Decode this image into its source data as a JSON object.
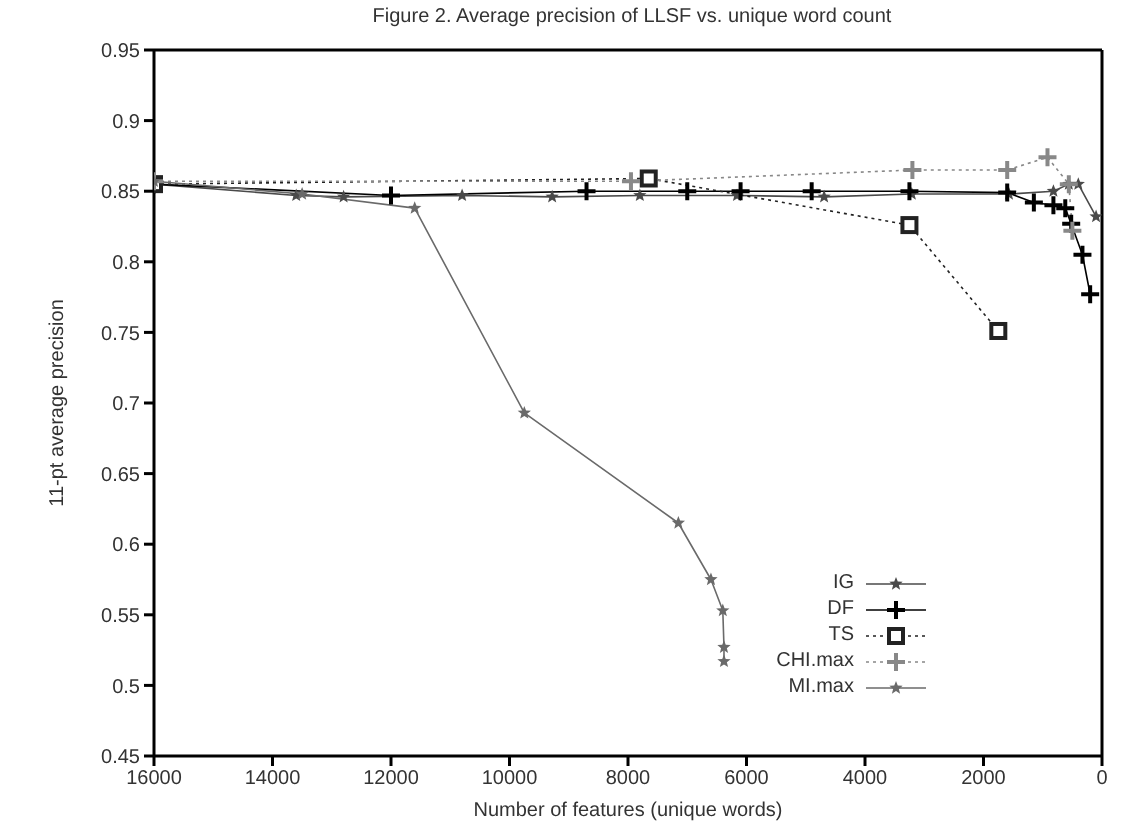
{
  "chart_data": {
    "type": "line",
    "title": "Figure 2. Average precision of LLSF vs. unique word count",
    "xlabel": "Number of features (unique words)",
    "ylabel": "11-pt average precision",
    "xlim": [
      16000,
      0
    ],
    "xticks": [
      16000,
      14000,
      12000,
      10000,
      8000,
      6000,
      4000,
      2000,
      0
    ],
    "ylim": [
      0.45,
      0.95
    ],
    "yticks": [
      0.45,
      0.5,
      0.55,
      0.6,
      0.65,
      0.7,
      0.75,
      0.8,
      0.85,
      0.9,
      0.95
    ],
    "grid": false,
    "legend": "bottom right",
    "series": [
      {
        "name": "IG",
        "color": "#4a4a4a",
        "marker": "star",
        "line_style": "solid",
        "x": [
          16000,
          13600,
          12800,
          10800,
          9280,
          7800,
          6160,
          4690,
          3210,
          1570,
          820,
          560,
          400,
          100
        ],
        "values": [
          0.855,
          0.847,
          0.846,
          0.847,
          0.846,
          0.847,
          0.847,
          0.846,
          0.848,
          0.848,
          0.85,
          0.855,
          0.855,
          0.832
        ]
      },
      {
        "name": "DF",
        "color": "#000000",
        "marker": "cross",
        "line_style": "solid",
        "x": [
          16000,
          12000,
          8700,
          7000,
          6100,
          4900,
          3250,
          1600,
          1150,
          820,
          620,
          520,
          330,
          200
        ],
        "values": [
          0.855,
          0.847,
          0.85,
          0.85,
          0.85,
          0.85,
          0.85,
          0.849,
          0.842,
          0.84,
          0.838,
          0.827,
          0.805,
          0.777
        ]
      },
      {
        "name": "TS",
        "color": "#222222",
        "marker": "square",
        "line_style": "dotted",
        "x": [
          16000,
          7650,
          3250,
          1750
        ],
        "values": [
          0.855,
          0.859,
          0.826,
          0.751
        ]
      },
      {
        "name": "CHI.max",
        "color": "#888888",
        "marker": "cross",
        "line_style": "dotted",
        "x": [
          16000,
          7950,
          3200,
          1600,
          920,
          560,
          500
        ],
        "values": [
          0.857,
          0.857,
          0.865,
          0.865,
          0.874,
          0.855,
          0.822
        ]
      },
      {
        "name": "MI.max",
        "color": "#6a6a6a",
        "marker": "star",
        "line_style": "solid",
        "x": [
          16000,
          13500,
          11600,
          9750,
          7150,
          6600,
          6400,
          6380,
          6380
        ],
        "values": [
          0.857,
          0.848,
          0.838,
          0.693,
          0.615,
          0.575,
          0.553,
          0.527,
          0.517
        ]
      }
    ]
  }
}
